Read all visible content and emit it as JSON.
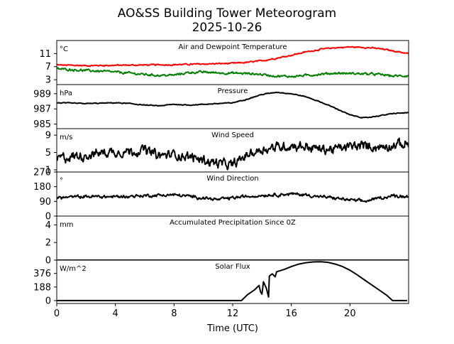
{
  "chart_data": {
    "type": "line",
    "title": "AO&SS Building Tower Meteorogram",
    "subtitle": "2025-10-26",
    "xlabel": "Time (UTC)",
    "xlim": [
      0,
      24
    ],
    "x_ticks": [
      0,
      4,
      8,
      12,
      16,
      20
    ],
    "panels": [
      {
        "id": "temperature",
        "title": "Air and Dewpoint Temperature",
        "unit": "°C",
        "ylim": [
          1.5,
          15
        ],
        "yticks": [
          3,
          7,
          11
        ],
        "series": [
          {
            "name": "Air Temperature",
            "color": "#ff0000",
            "noise": 0.15,
            "x": [
              0,
              2,
              4,
              6,
              8,
              10,
              12,
              13,
              14,
              15,
              16,
              17,
              18,
              19,
              20,
              21,
              22,
              23,
              24
            ],
            "y": [
              7.5,
              7.3,
              7.4,
              7.5,
              7.6,
              7.8,
              8.0,
              8.3,
              8.8,
              9.6,
              10.5,
              11.5,
              12.3,
              12.8,
              13.0,
              12.9,
              12.5,
              11.8,
              11.0
            ]
          },
          {
            "name": "Dewpoint Temperature",
            "color": "#008000",
            "noise": 0.25,
            "x": [
              0,
              1,
              2,
              3,
              4,
              5,
              6,
              7,
              8,
              9,
              10,
              11,
              12,
              13,
              14,
              15,
              16,
              17,
              18,
              19,
              20,
              21,
              22,
              23,
              24
            ],
            "y": [
              6.3,
              6.1,
              5.8,
              5.6,
              5.3,
              5.0,
              4.6,
              4.3,
              4.4,
              5.2,
              5.3,
              5.1,
              5.0,
              4.9,
              4.6,
              4.1,
              4.0,
              4.3,
              4.7,
              5.0,
              4.9,
              4.8,
              4.6,
              4.1,
              4.2
            ]
          }
        ]
      },
      {
        "id": "pressure",
        "title": "Pressure",
        "unit": "hPa",
        "ylim": [
          984.4,
          990.2
        ],
        "yticks": [
          985,
          987,
          989
        ],
        "series": [
          {
            "name": "Pressure",
            "color": "#000000",
            "noise": 0.04,
            "x": [
              0,
              2,
              4,
              5,
              6,
              7,
              8,
              9,
              10,
              11,
              12,
              13,
              14,
              15,
              16,
              17,
              18,
              19,
              20,
              21,
              22,
              23,
              24
            ],
            "y": [
              987.8,
              987.7,
              987.8,
              987.7,
              987.5,
              987.4,
              987.6,
              987.5,
              987.6,
              987.7,
              987.8,
              988.3,
              988.9,
              989.2,
              989.0,
              988.6,
              987.9,
              987.1,
              986.2,
              985.8,
              986.1,
              986.4,
              986.5
            ]
          }
        ]
      },
      {
        "id": "wind_speed",
        "title": "Wind Speed",
        "unit": "m/s",
        "ylim": [
          0.5,
          10.5
        ],
        "yticks": [
          1,
          5,
          9
        ],
        "series": [
          {
            "name": "Wind Speed",
            "color": "#000000",
            "noise": 0.8,
            "x": [
              0,
              1,
              2,
              3,
              4,
              5,
              6,
              7,
              8,
              9,
              10,
              11,
              12,
              13,
              14,
              15,
              16,
              17,
              18,
              19,
              20,
              21,
              22,
              23,
              24
            ],
            "y": [
              3.6,
              4.0,
              4.4,
              4.9,
              5.2,
              5.3,
              5.6,
              4.2,
              4.6,
              4.0,
              3.3,
              2.5,
              2.0,
              4.5,
              5.8,
              6.2,
              6.6,
              6.4,
              5.7,
              5.8,
              6.3,
              6.6,
              6.2,
              6.8,
              6.9
            ]
          }
        ]
      },
      {
        "id": "wind_direction",
        "title": "Wind Direction",
        "unit": "°",
        "ylim": [
          0,
          270
        ],
        "yticks": [
          0,
          90,
          180,
          270
        ],
        "series": [
          {
            "name": "Wind Direction",
            "color": "#000000",
            "noise": 7,
            "x": [
              0,
              2,
              4,
              6,
              8,
              10,
              11,
              12,
              14,
              16,
              17,
              18,
              19,
              20,
              21,
              22,
              23,
              24
            ],
            "y": [
              112,
              120,
              118,
              125,
              130,
              112,
              100,
              112,
              128,
              135,
              130,
              118,
              110,
              98,
              90,
              110,
              125,
              120
            ]
          }
        ]
      },
      {
        "id": "precipitation",
        "title": "Accumulated Precipitation Since 0Z",
        "unit": "mm",
        "ylim": [
          0,
          5
        ],
        "yticks": [
          0,
          2,
          4
        ],
        "series": [
          {
            "name": "Accumulated Precipitation",
            "color": "#000000",
            "noise": 0,
            "x": [
              0,
              24
            ],
            "y": [
              0,
              0
            ]
          }
        ]
      },
      {
        "id": "solar",
        "title": "Solar Flux",
        "unit": "W/m^2",
        "ylim": [
          -40,
          560
        ],
        "yticks": [
          0,
          188,
          376
        ],
        "series": [
          {
            "name": "Solar Flux",
            "color": "#000000",
            "noise": 0,
            "x": [
              0,
              12.6,
              13.0,
              13.5,
              13.8,
              13.9,
              14.0,
              14.1,
              14.3,
              14.45,
              14.5,
              14.7,
              14.9,
              15.0,
              15.5,
              16.0,
              16.5,
              17.0,
              17.5,
              18.0,
              18.5,
              19.0,
              19.5,
              20.0,
              20.5,
              21.0,
              21.5,
              22.0,
              22.5,
              22.9,
              23.5,
              23.9
            ],
            "y": [
              0,
              0,
              80,
              150,
              210,
              120,
              90,
              260,
              170,
              50,
              340,
              370,
              330,
              400,
              430,
              470,
              505,
              525,
              535,
              538,
              530,
              505,
              470,
              420,
              355,
              285,
              215,
              145,
              75,
              0,
              0,
              0
            ]
          }
        ]
      }
    ]
  }
}
